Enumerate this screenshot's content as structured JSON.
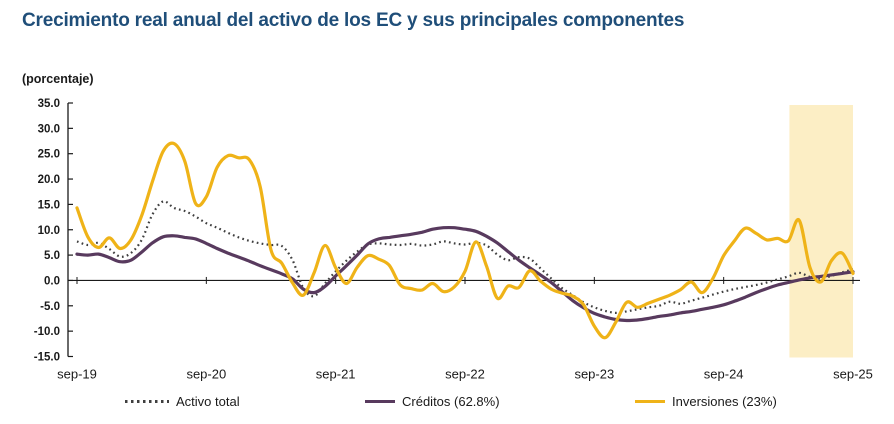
{
  "title": "Crecimiento real anual del activo de los EC y sus principales componentes",
  "units_label": "(porcentaje)",
  "colors": {
    "title": "#1F4E79",
    "axis": "#1a1a1a",
    "highlight_band": "#FCEEC5",
    "activo_total": "#3F3F3F",
    "creditos": "#583A5E",
    "inversiones": "#EFB318"
  },
  "chart_data": {
    "type": "line",
    "title": "Crecimiento real anual del activo de los EC y sus principales componentes",
    "ylabel": "(porcentaje)",
    "ylim": [
      -15,
      35
    ],
    "y_ticks": [
      35,
      30,
      25,
      20,
      15,
      10,
      5,
      0,
      -5,
      -10,
      -15
    ],
    "y_tick_labels": [
      "35.0",
      "30.0",
      "25.0",
      "20.0",
      "15.0",
      "10.0",
      "5.0",
      "0.0",
      "-5.0",
      "-10.0",
      "-15.0"
    ],
    "x_unit": "months since sep-19 (1 point per month)",
    "x_tick_months": [
      0,
      12,
      24,
      36,
      48,
      60,
      72
    ],
    "x_tick_labels": [
      "sep-19",
      "sep-20",
      "sep-21",
      "sep-22",
      "sep-23",
      "sep-24",
      "sep-25"
    ],
    "grid": false,
    "legend_position": "bottom",
    "highlight_band_months": [
      66.1,
      72
    ],
    "series": [
      {
        "name": "Activo total",
        "style": "dotted",
        "color": "#3F3F3F",
        "values": [
          7.7,
          7.0,
          7.4,
          6.2,
          4.7,
          5.4,
          8.0,
          13.0,
          15.6,
          14.3,
          13.7,
          12.6,
          11.3,
          10.4,
          9.4,
          8.5,
          7.8,
          7.3,
          7.0,
          6.8,
          4.0,
          -1.5,
          -3.1,
          -0.6,
          1.8,
          3.9,
          5.7,
          7.1,
          7.3,
          7.1,
          7.0,
          7.2,
          6.9,
          7.1,
          7.7,
          7.3,
          7.1,
          7.4,
          6.9,
          5.1,
          4.0,
          4.6,
          4.3,
          2.4,
          0.4,
          -1.5,
          -2.9,
          -4.3,
          -5.3,
          -6.0,
          -6.4,
          -6.1,
          -5.7,
          -5.3,
          -5.0,
          -4.2,
          -4.6,
          -4.0,
          -3.4,
          -2.8,
          -2.2,
          -1.7,
          -1.3,
          -0.9,
          -0.4,
          0.2,
          0.8,
          1.5,
          0.7,
          0.4,
          0.9,
          1.6,
          2.2
        ]
      },
      {
        "name": "Créditos (62.8%)",
        "style": "solid",
        "color": "#583A5E",
        "values": [
          5.2,
          5.0,
          5.2,
          4.5,
          3.7,
          4.0,
          5.6,
          7.4,
          8.6,
          8.8,
          8.5,
          8.2,
          7.3,
          6.3,
          5.4,
          4.6,
          3.8,
          2.9,
          2.1,
          1.3,
          0.3,
          -1.7,
          -2.4,
          -1.2,
          0.9,
          2.9,
          5.0,
          7.2,
          8.2,
          8.5,
          8.8,
          9.1,
          9.5,
          10.1,
          10.4,
          10.4,
          10.1,
          9.7,
          8.7,
          7.4,
          5.7,
          4.0,
          2.5,
          1.1,
          -0.4,
          -2.2,
          -4.0,
          -5.4,
          -6.5,
          -7.2,
          -7.7,
          -7.9,
          -7.8,
          -7.5,
          -7.1,
          -6.8,
          -6.4,
          -6.1,
          -5.7,
          -5.3,
          -4.8,
          -4.1,
          -3.3,
          -2.4,
          -1.6,
          -0.9,
          -0.4,
          0.1,
          0.5,
          0.8,
          1.1,
          1.4,
          1.7
        ]
      },
      {
        "name": "Inversiones (23%)",
        "style": "solid",
        "color": "#EFB318",
        "values": [
          14.3,
          8.6,
          6.5,
          8.4,
          6.3,
          8.0,
          12.8,
          19.5,
          25.5,
          27.0,
          23.5,
          15.2,
          16.5,
          22.3,
          24.6,
          24.2,
          23.8,
          18.5,
          6.0,
          3.4,
          -0.5,
          -2.9,
          1.5,
          6.9,
          2.5,
          -0.6,
          2.6,
          4.9,
          4.2,
          2.9,
          -0.9,
          -1.6,
          -1.9,
          -0.6,
          -2.2,
          -1.3,
          1.8,
          7.6,
          2.8,
          -3.5,
          -1.1,
          -1.4,
          1.9,
          -0.1,
          -1.7,
          -2.5,
          -3.1,
          -4.8,
          -9.0,
          -11.3,
          -8.2,
          -4.3,
          -5.3,
          -4.5,
          -3.7,
          -2.9,
          -1.8,
          -0.3,
          -2.4,
          0.4,
          4.9,
          7.8,
          10.3,
          9.3,
          8.0,
          8.3,
          7.8,
          11.9,
          2.6,
          -0.3,
          3.9,
          5.4,
          1.4
        ]
      }
    ]
  }
}
